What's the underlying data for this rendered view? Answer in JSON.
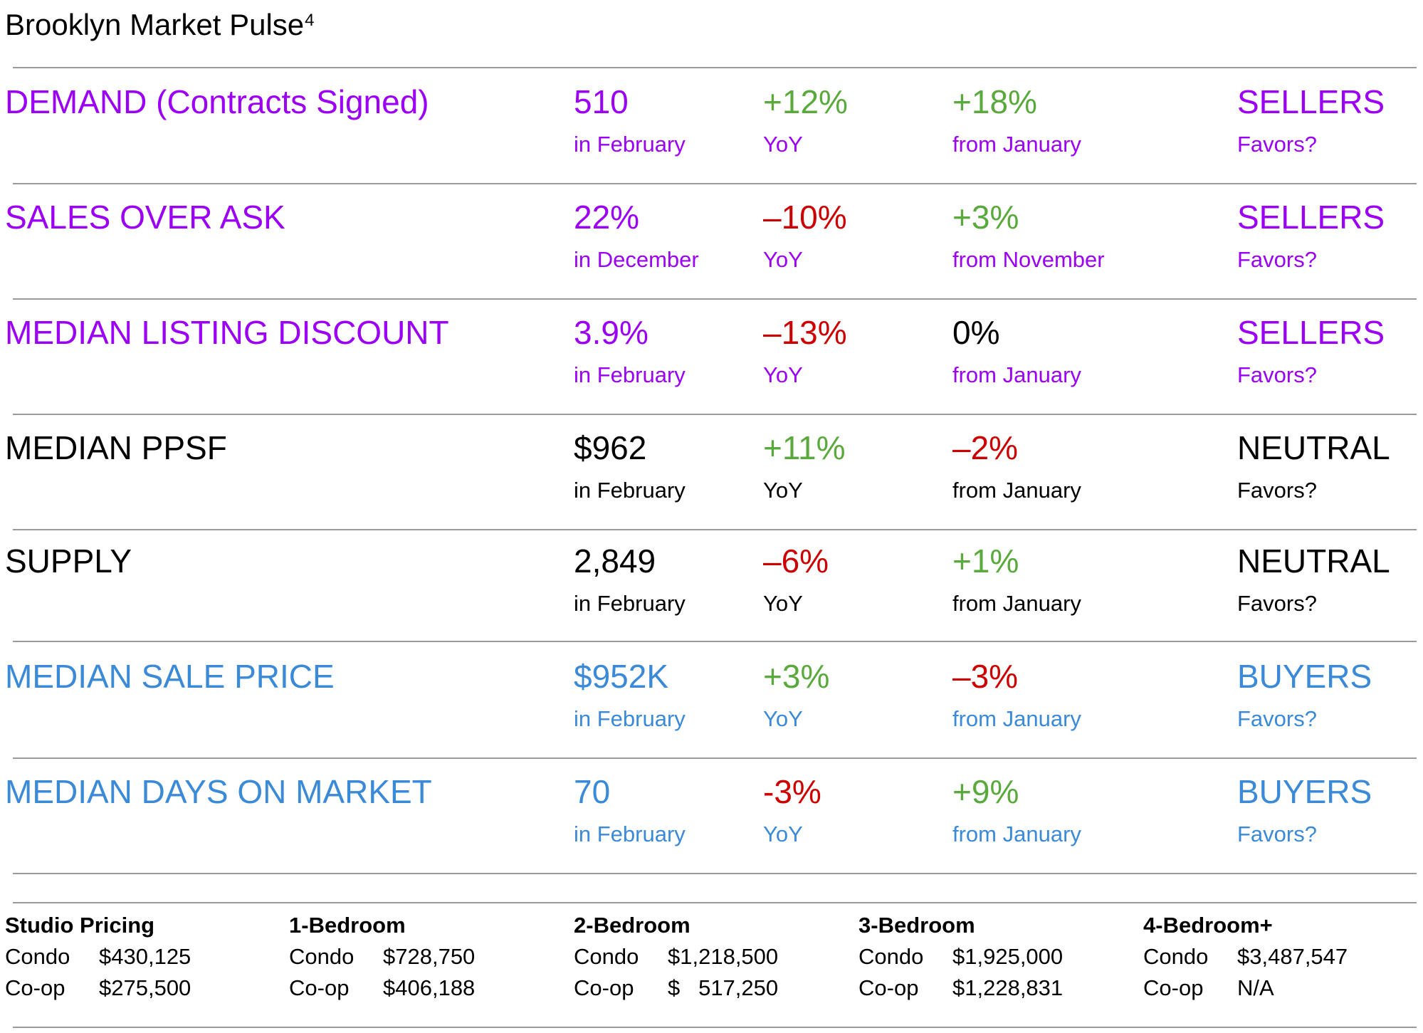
{
  "title": "Brooklyn Market Pulse",
  "title_superscript": "4",
  "colors": {
    "sellers": "#9b00f5",
    "neutral": "#000000",
    "buyers": "#3b8ad8",
    "positive": "#5aa93c",
    "negative": "#cc0000"
  },
  "metrics": [
    {
      "label": "DEMAND (Contracts Signed)",
      "value": "510",
      "value_period": "in February",
      "yoy": "+12%",
      "yoy_label": "YoY",
      "mom": "+18%",
      "mom_label": "from January",
      "favors": "SELLERS",
      "favors_label": "Favors?"
    },
    {
      "label": "SALES OVER ASK",
      "value": "22%",
      "value_period": "in December",
      "yoy": "–10%",
      "yoy_label": "YoY",
      "mom": "+3%",
      "mom_label": "from November",
      "favors": "SELLERS",
      "favors_label": "Favors?"
    },
    {
      "label": "MEDIAN LISTING DISCOUNT",
      "value": "3.9%",
      "value_period": "in February",
      "yoy": "–13%",
      "yoy_label": "YoY",
      "mom": "0%",
      "mom_label": "from January",
      "favors": "SELLERS",
      "favors_label": "Favors?"
    },
    {
      "label": "MEDIAN PPSF",
      "value": "$962",
      "value_period": "in February",
      "yoy": "+11%",
      "yoy_label": "YoY",
      "mom": "–2%",
      "mom_label": "from January",
      "favors": "NEUTRAL",
      "favors_label": "Favors?"
    },
    {
      "label": "SUPPLY",
      "value": "2,849",
      "value_period": "in February",
      "yoy": "–6%",
      "yoy_label": "YoY",
      "mom": "+1%",
      "mom_label": "from January",
      "favors": "NEUTRAL",
      "favors_label": "Favors?"
    },
    {
      "label": "MEDIAN SALE PRICE",
      "value": "$952K",
      "value_period": "in February",
      "yoy": "+3%",
      "yoy_label": "YoY",
      "mom": "–3%",
      "mom_label": "from January",
      "favors": "BUYERS",
      "favors_label": "Favors?"
    },
    {
      "label": "MEDIAN DAYS ON MARKET",
      "value": "70",
      "value_period": "in February",
      "yoy": "-3%",
      "yoy_label": "YoY",
      "mom": "+9%",
      "mom_label": "from January",
      "favors": "BUYERS",
      "favors_label": "Favors?"
    }
  ],
  "pricing": [
    {
      "heading": "Studio Pricing",
      "condo_label": "Condo",
      "condo": "$430,125",
      "coop_label": "Co-op",
      "coop": "$275,500"
    },
    {
      "heading": "1-Bedroom",
      "condo_label": "Condo",
      "condo": "$728,750",
      "coop_label": "Co-op",
      "coop": "$406,188"
    },
    {
      "heading": "2-Bedroom",
      "condo_label": "Condo",
      "condo": "$1,218,500",
      "coop_label": "Co-op",
      "coop": "$   517,250"
    },
    {
      "heading": "3-Bedroom",
      "condo_label": "Condo",
      "condo": "$1,925,000",
      "coop_label": "Co-op",
      "coop": "$1,228,831"
    },
    {
      "heading": "4-Bedroom+",
      "condo_label": "Condo",
      "condo": "$3,487,547",
      "coop_label": "Co-op",
      "coop": "N/A"
    }
  ]
}
